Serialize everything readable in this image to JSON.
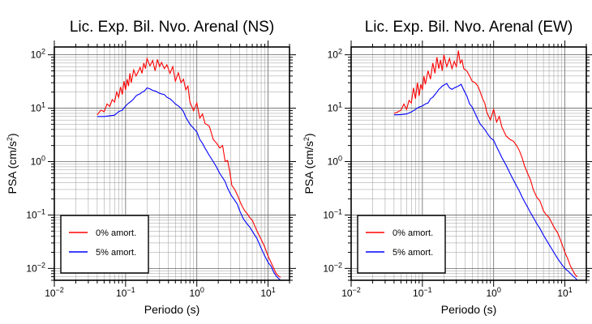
{
  "chart_data": [
    {
      "type": "line",
      "title": "Lic. Exp. Bil. Nvo. Arenal (NS)",
      "xlabel": "Periodo (s)",
      "ylabel": "PSA (cm/s²)",
      "xscale": "log",
      "yscale": "log",
      "xlim": [
        0.01,
        20
      ],
      "ylim": [
        0.006,
        140
      ],
      "grid": true,
      "legend_position": "bottom-left",
      "series": [
        {
          "name": "0% amort.",
          "color": "#ff0000",
          "x": [
            0.04,
            0.045,
            0.05,
            0.055,
            0.06,
            0.065,
            0.07,
            0.075,
            0.08,
            0.085,
            0.09,
            0.095,
            0.1,
            0.105,
            0.11,
            0.115,
            0.12,
            0.13,
            0.14,
            0.15,
            0.16,
            0.17,
            0.18,
            0.19,
            0.2,
            0.22,
            0.24,
            0.26,
            0.28,
            0.3,
            0.32,
            0.35,
            0.38,
            0.42,
            0.46,
            0.5,
            0.55,
            0.6,
            0.65,
            0.7,
            0.75,
            0.8,
            0.9,
            1.0,
            1.1,
            1.2,
            1.3,
            1.5,
            1.7,
            1.9,
            2.1,
            2.3,
            2.5,
            2.7,
            2.9,
            3.1,
            3.3,
            3.5,
            3.8,
            4.1,
            4.4,
            4.7,
            5.0,
            5.5,
            6.0,
            7.0,
            8.0,
            9.0,
            10.0,
            11.0,
            12.0,
            13.0,
            14.0,
            15.0
          ],
          "y": [
            7.5,
            9.2,
            8.6,
            12.0,
            10.8,
            14.5,
            13.0,
            20.0,
            16.0,
            25.0,
            18.0,
            32.0,
            22.0,
            35.0,
            26.0,
            45.0,
            30.0,
            52.0,
            40.0,
            48.0,
            58.0,
            45.0,
            70.0,
            55.0,
            85.0,
            62.0,
            78.0,
            50.0,
            82.0,
            60.0,
            72.0,
            55.0,
            65.0,
            45.0,
            60.0,
            32.0,
            46.0,
            30.0,
            35.0,
            22.0,
            26.0,
            13.0,
            9.0,
            12.5,
            6.5,
            7.8,
            5.2,
            4.6,
            2.6,
            2.2,
            1.8,
            2.0,
            1.0,
            1.05,
            0.65,
            0.36,
            0.32,
            0.28,
            0.22,
            0.17,
            0.14,
            0.12,
            0.11,
            0.09,
            0.08,
            0.05,
            0.035,
            0.025,
            0.017,
            0.013,
            0.01,
            0.008,
            0.0072,
            0.0068
          ]
        },
        {
          "name": "5% amort.",
          "color": "#0000ff",
          "x": [
            0.04,
            0.05,
            0.06,
            0.07,
            0.08,
            0.09,
            0.1,
            0.11,
            0.12,
            0.13,
            0.14,
            0.15,
            0.16,
            0.17,
            0.18,
            0.19,
            0.2,
            0.22,
            0.24,
            0.26,
            0.28,
            0.3,
            0.32,
            0.35,
            0.38,
            0.42,
            0.46,
            0.5,
            0.55,
            0.6,
            0.65,
            0.7,
            0.75,
            0.8,
            0.9,
            1.0,
            1.1,
            1.2,
            1.3,
            1.5,
            1.7,
            1.9,
            2.1,
            2.3,
            2.5,
            2.7,
            3.0,
            3.3,
            3.7,
            4.0,
            4.5,
            5.0,
            5.5,
            6.0,
            7.0,
            8.0,
            9.0,
            10.0,
            11.0,
            12.0,
            13.0,
            14.0,
            15.0
          ],
          "y": [
            7.0,
            7.0,
            7.2,
            7.4,
            8.6,
            9.2,
            11.0,
            12.4,
            13.5,
            15.0,
            17.0,
            18.0,
            18.5,
            20.0,
            20.5,
            22.0,
            24.0,
            23.0,
            21.5,
            21.0,
            20.0,
            19.0,
            18.5,
            18.0,
            16.0,
            15.0,
            13.5,
            12.0,
            11.0,
            10.0,
            8.6,
            6.8,
            5.8,
            5.0,
            4.2,
            3.6,
            2.6,
            2.2,
            1.8,
            1.3,
            1.0,
            0.78,
            0.6,
            0.5,
            0.42,
            0.32,
            0.24,
            0.2,
            0.16,
            0.12,
            0.085,
            0.07,
            0.06,
            0.05,
            0.036,
            0.024,
            0.017,
            0.013,
            0.011,
            0.0085,
            0.0072,
            0.0065,
            0.006
          ]
        }
      ]
    },
    {
      "type": "line",
      "title": "Lic. Exp. Bil. Nvo. Arenal (EW)",
      "xlabel": "Periodo (s)",
      "ylabel": "PSA (cm/s²)",
      "xscale": "log",
      "yscale": "log",
      "xlim": [
        0.01,
        20
      ],
      "ylim": [
        0.006,
        140
      ],
      "grid": true,
      "legend_position": "bottom-left",
      "series": [
        {
          "name": "0% amort.",
          "color": "#ff0000",
          "x": [
            0.04,
            0.045,
            0.05,
            0.055,
            0.06,
            0.065,
            0.07,
            0.075,
            0.08,
            0.085,
            0.09,
            0.095,
            0.1,
            0.105,
            0.11,
            0.12,
            0.13,
            0.14,
            0.15,
            0.16,
            0.17,
            0.18,
            0.19,
            0.2,
            0.22,
            0.24,
            0.26,
            0.28,
            0.3,
            0.32,
            0.34,
            0.36,
            0.38,
            0.42,
            0.46,
            0.5,
            0.55,
            0.6,
            0.65,
            0.7,
            0.75,
            0.8,
            0.9,
            1.0,
            1.1,
            1.2,
            1.3,
            1.5,
            1.7,
            1.9,
            2.1,
            2.3,
            2.5,
            2.7,
            3.0,
            3.3,
            3.6,
            4.0,
            4.5,
            5.0,
            5.5,
            6.0,
            7.0,
            8.0,
            9.0,
            10.0,
            11.0,
            12.0,
            13.0,
            14.0,
            15.0
          ],
          "y": [
            8.0,
            8.5,
            9.2,
            12.0,
            9.5,
            14.0,
            12.5,
            24.0,
            15.0,
            30.0,
            17.0,
            28.0,
            22.0,
            40.0,
            28.0,
            50.0,
            35.0,
            70.0,
            45.0,
            90.0,
            55.0,
            80.0,
            50.0,
            100.0,
            60.0,
            85.0,
            55.0,
            75.0,
            60.0,
            120.0,
            70.0,
            80.0,
            55.0,
            50.0,
            40.0,
            32.0,
            30.0,
            26.0,
            20.0,
            15.0,
            12.5,
            8.5,
            6.0,
            9.5,
            5.5,
            7.0,
            4.5,
            3.0,
            2.6,
            2.4,
            2.0,
            1.6,
            1.2,
            0.85,
            0.6,
            0.45,
            0.3,
            0.22,
            0.18,
            0.12,
            0.1,
            0.09,
            0.06,
            0.045,
            0.03,
            0.02,
            0.015,
            0.011,
            0.009,
            0.0075,
            0.007
          ]
        },
        {
          "name": "5% amort.",
          "color": "#0000ff",
          "x": [
            0.04,
            0.05,
            0.06,
            0.07,
            0.08,
            0.09,
            0.1,
            0.11,
            0.12,
            0.13,
            0.14,
            0.15,
            0.16,
            0.17,
            0.18,
            0.19,
            0.2,
            0.22,
            0.24,
            0.26,
            0.28,
            0.3,
            0.32,
            0.35,
            0.38,
            0.42,
            0.46,
            0.5,
            0.55,
            0.6,
            0.65,
            0.7,
            0.75,
            0.8,
            0.9,
            1.0,
            1.1,
            1.2,
            1.3,
            1.5,
            1.7,
            1.9,
            2.1,
            2.3,
            2.5,
            2.7,
            3.0,
            3.3,
            3.7,
            4.0,
            4.5,
            5.0,
            5.5,
            6.0,
            7.0,
            8.0,
            9.0,
            10.0,
            11.0,
            12.0,
            13.0,
            14.0,
            15.0
          ],
          "y": [
            7.5,
            7.6,
            7.8,
            8.5,
            9.5,
            10.5,
            11.0,
            12.0,
            12.5,
            15.0,
            16.0,
            18.0,
            20.0,
            22.5,
            24.0,
            26.0,
            27.0,
            29.0,
            24.0,
            22.5,
            24.0,
            25.0,
            26.0,
            28.0,
            22.0,
            17.0,
            12.0,
            10.5,
            8.0,
            6.2,
            5.0,
            4.5,
            4.0,
            3.5,
            2.8,
            2.5,
            1.9,
            1.5,
            1.2,
            0.85,
            0.6,
            0.45,
            0.35,
            0.28,
            0.22,
            0.18,
            0.14,
            0.11,
            0.085,
            0.07,
            0.055,
            0.042,
            0.034,
            0.028,
            0.02,
            0.015,
            0.012,
            0.01,
            0.009,
            0.008,
            0.0072,
            0.0066,
            0.006
          ]
        }
      ]
    }
  ]
}
